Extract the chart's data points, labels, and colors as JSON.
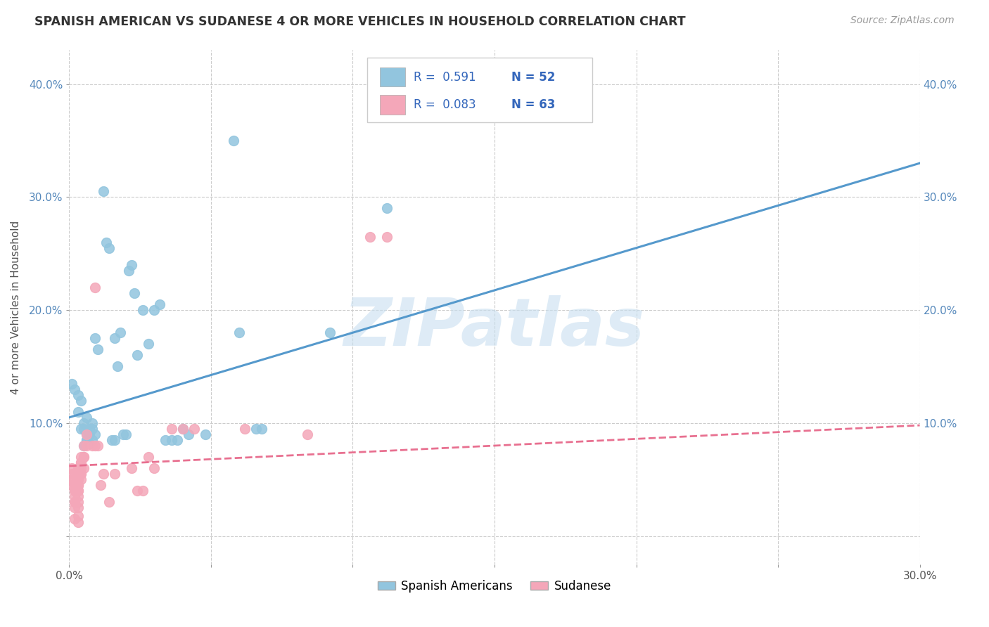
{
  "title": "SPANISH AMERICAN VS SUDANESE 4 OR MORE VEHICLES IN HOUSEHOLD CORRELATION CHART",
  "source": "Source: ZipAtlas.com",
  "ylabel": "4 or more Vehicles in Household",
  "xlim": [
    0.0,
    0.3
  ],
  "ylim": [
    -0.025,
    0.43
  ],
  "xticks": [
    0.0,
    0.05,
    0.1,
    0.15,
    0.2,
    0.25,
    0.3
  ],
  "xtick_labels": [
    "0.0%",
    "",
    "",
    "",
    "",
    "",
    "30.0%"
  ],
  "ytick_positions": [
    0.0,
    0.1,
    0.2,
    0.3,
    0.4
  ],
  "ytick_labels": [
    "",
    "10.0%",
    "20.0%",
    "30.0%",
    "40.0%"
  ],
  "watermark": "ZIPatlas",
  "legend_R1": "R =  0.591",
  "legend_N1": "N = 52",
  "legend_R2": "R =  0.083",
  "legend_N2": "N = 63",
  "blue_color": "#92c5de",
  "pink_color": "#f4a7b9",
  "blue_line_color": "#5599cc",
  "pink_line_color": "#e87090",
  "blue_scatter": [
    [
      0.001,
      0.135
    ],
    [
      0.002,
      0.13
    ],
    [
      0.003,
      0.11
    ],
    [
      0.003,
      0.125
    ],
    [
      0.004,
      0.12
    ],
    [
      0.004,
      0.095
    ],
    [
      0.005,
      0.095
    ],
    [
      0.005,
      0.1
    ],
    [
      0.005,
      0.08
    ],
    [
      0.006,
      0.085
    ],
    [
      0.006,
      0.09
    ],
    [
      0.006,
      0.085
    ],
    [
      0.006,
      0.105
    ],
    [
      0.007,
      0.09
    ],
    [
      0.007,
      0.082
    ],
    [
      0.007,
      0.095
    ],
    [
      0.008,
      0.1
    ],
    [
      0.008,
      0.085
    ],
    [
      0.008,
      0.095
    ],
    [
      0.009,
      0.09
    ],
    [
      0.009,
      0.175
    ],
    [
      0.01,
      0.165
    ],
    [
      0.012,
      0.305
    ],
    [
      0.013,
      0.26
    ],
    [
      0.014,
      0.255
    ],
    [
      0.015,
      0.085
    ],
    [
      0.016,
      0.085
    ],
    [
      0.016,
      0.175
    ],
    [
      0.017,
      0.15
    ],
    [
      0.018,
      0.18
    ],
    [
      0.019,
      0.09
    ],
    [
      0.02,
      0.09
    ],
    [
      0.021,
      0.235
    ],
    [
      0.022,
      0.24
    ],
    [
      0.023,
      0.215
    ],
    [
      0.024,
      0.16
    ],
    [
      0.026,
      0.2
    ],
    [
      0.028,
      0.17
    ],
    [
      0.03,
      0.2
    ],
    [
      0.032,
      0.205
    ],
    [
      0.034,
      0.085
    ],
    [
      0.036,
      0.085
    ],
    [
      0.038,
      0.085
    ],
    [
      0.04,
      0.095
    ],
    [
      0.042,
      0.09
    ],
    [
      0.048,
      0.09
    ],
    [
      0.058,
      0.35
    ],
    [
      0.06,
      0.18
    ],
    [
      0.066,
      0.095
    ],
    [
      0.068,
      0.095
    ],
    [
      0.092,
      0.18
    ],
    [
      0.112,
      0.29
    ]
  ],
  "pink_scatter": [
    [
      0.001,
      0.06
    ],
    [
      0.001,
      0.055
    ],
    [
      0.001,
      0.05
    ],
    [
      0.001,
      0.045
    ],
    [
      0.002,
      0.045
    ],
    [
      0.002,
      0.04
    ],
    [
      0.002,
      0.035
    ],
    [
      0.002,
      0.05
    ],
    [
      0.002,
      0.045
    ],
    [
      0.002,
      0.04
    ],
    [
      0.002,
      0.03
    ],
    [
      0.002,
      0.04
    ],
    [
      0.002,
      0.03
    ],
    [
      0.002,
      0.025
    ],
    [
      0.002,
      0.015
    ],
    [
      0.002,
      0.055
    ],
    [
      0.003,
      0.05
    ],
    [
      0.003,
      0.045
    ],
    [
      0.003,
      0.04
    ],
    [
      0.003,
      0.025
    ],
    [
      0.003,
      0.05
    ],
    [
      0.003,
      0.045
    ],
    [
      0.003,
      0.04
    ],
    [
      0.003,
      0.03
    ],
    [
      0.003,
      0.018
    ],
    [
      0.003,
      0.06
    ],
    [
      0.003,
      0.055
    ],
    [
      0.003,
      0.045
    ],
    [
      0.003,
      0.035
    ],
    [
      0.003,
      0.012
    ],
    [
      0.004,
      0.065
    ],
    [
      0.004,
      0.06
    ],
    [
      0.004,
      0.055
    ],
    [
      0.004,
      0.05
    ],
    [
      0.004,
      0.07
    ],
    [
      0.004,
      0.065
    ],
    [
      0.004,
      0.055
    ],
    [
      0.005,
      0.07
    ],
    [
      0.005,
      0.06
    ],
    [
      0.005,
      0.08
    ],
    [
      0.005,
      0.07
    ],
    [
      0.006,
      0.08
    ],
    [
      0.006,
      0.09
    ],
    [
      0.008,
      0.08
    ],
    [
      0.009,
      0.08
    ],
    [
      0.009,
      0.22
    ],
    [
      0.01,
      0.08
    ],
    [
      0.011,
      0.045
    ],
    [
      0.012,
      0.055
    ],
    [
      0.014,
      0.03
    ],
    [
      0.016,
      0.055
    ],
    [
      0.022,
      0.06
    ],
    [
      0.024,
      0.04
    ],
    [
      0.026,
      0.04
    ],
    [
      0.028,
      0.07
    ],
    [
      0.03,
      0.06
    ],
    [
      0.036,
      0.095
    ],
    [
      0.04,
      0.095
    ],
    [
      0.044,
      0.095
    ],
    [
      0.062,
      0.095
    ],
    [
      0.084,
      0.09
    ],
    [
      0.106,
      0.265
    ],
    [
      0.112,
      0.265
    ]
  ],
  "blue_trend_x": [
    0.0,
    0.3
  ],
  "blue_trend_y": [
    0.105,
    0.33
  ],
  "pink_trend_x": [
    0.0,
    0.3
  ],
  "pink_trend_y": [
    0.062,
    0.098
  ],
  "background_color": "#ffffff",
  "grid_color": "#cccccc",
  "watermark_color": "#c8dff0",
  "tick_color": "#5588bb",
  "title_color": "#333333",
  "label_color": "#555555"
}
